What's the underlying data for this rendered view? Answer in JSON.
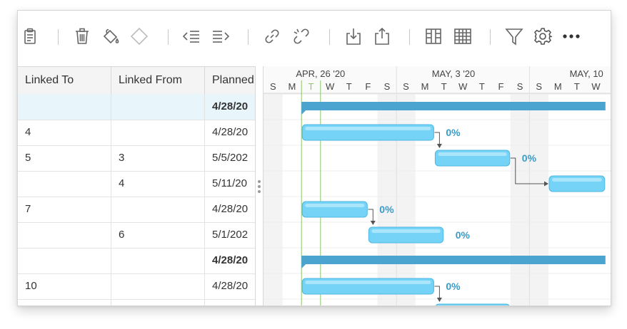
{
  "toolbar": {
    "icons": [
      "clipboard-icon",
      "trash-icon",
      "paint-bucket-icon",
      "diamond-icon",
      "outdent-icon",
      "indent-icon",
      "link-icon",
      "unlink-icon",
      "import-icon",
      "export-icon",
      "columns-icon",
      "table-icon",
      "filter-icon",
      "gear-icon",
      "more-icon"
    ]
  },
  "grid": {
    "columns": [
      "Linked To",
      "Linked From",
      "Planned"
    ],
    "rows": [
      {
        "linked_to": "",
        "linked_from": "",
        "planned": "4/28/20",
        "bold": true,
        "selected": true
      },
      {
        "linked_to": "4",
        "linked_from": "",
        "planned": "4/28/20",
        "bold": false
      },
      {
        "linked_to": "5",
        "linked_from": "3",
        "planned": "5/5/202",
        "bold": false
      },
      {
        "linked_to": "",
        "linked_from": "4",
        "planned": "5/11/20",
        "bold": false
      },
      {
        "linked_to": "7",
        "linked_from": "",
        "planned": "4/28/20",
        "bold": false
      },
      {
        "linked_to": "",
        "linked_from": "6",
        "planned": "5/1/202",
        "bold": false
      },
      {
        "linked_to": "",
        "linked_from": "",
        "planned": "4/28/20",
        "bold": true
      },
      {
        "linked_to": "10",
        "linked_from": "",
        "planned": "4/28/20",
        "bold": false
      },
      {
        "linked_to": "",
        "linked_from": "",
        "planned": "",
        "bold": false
      }
    ]
  },
  "gantt": {
    "weeks": [
      "APR, 26 '20",
      "MAY, 3 '20",
      "MAY, 10"
    ],
    "days": [
      "S",
      "M",
      "T",
      "W",
      "T",
      "F",
      "S",
      "S",
      "M",
      "T",
      "W",
      "T",
      "F",
      "S",
      "S",
      "M",
      "T",
      "W"
    ],
    "today_index": 2,
    "weekend_indices": [
      0,
      6,
      7,
      13,
      14
    ],
    "tasks": [
      {
        "row": 0,
        "type": "summary",
        "start": 2,
        "end": 18
      },
      {
        "row": 1,
        "type": "task",
        "start": 2,
        "end": 9,
        "progress": "0%"
      },
      {
        "row": 2,
        "type": "task",
        "start": 9,
        "end": 13,
        "progress": "0%"
      },
      {
        "row": 3,
        "type": "task",
        "start": 15,
        "end": 18,
        "progress": ""
      },
      {
        "row": 4,
        "type": "task",
        "start": 2,
        "end": 5.5,
        "progress": "0%"
      },
      {
        "row": 5,
        "type": "task",
        "start": 5.5,
        "end": 9.5,
        "progress": "0%"
      },
      {
        "row": 6,
        "type": "summary",
        "start": 2,
        "end": 18
      },
      {
        "row": 7,
        "type": "task",
        "start": 2,
        "end": 9,
        "progress": "0%"
      },
      {
        "row": 8,
        "type": "task",
        "start": 9,
        "end": 13,
        "progress": ""
      }
    ],
    "links": [
      {
        "from": 1,
        "to": 2
      },
      {
        "from": 2,
        "to": 3
      },
      {
        "from": 4,
        "to": 5
      },
      {
        "from": 7,
        "to": 8
      }
    ],
    "colors": {
      "bar": "#74d3f6",
      "bar_border": "#4fb8e2",
      "summary": "#4ba3cf",
      "progress_text": "#3a9bc7",
      "weekend": "#f3f3f3",
      "today": "#8cc46a"
    }
  }
}
